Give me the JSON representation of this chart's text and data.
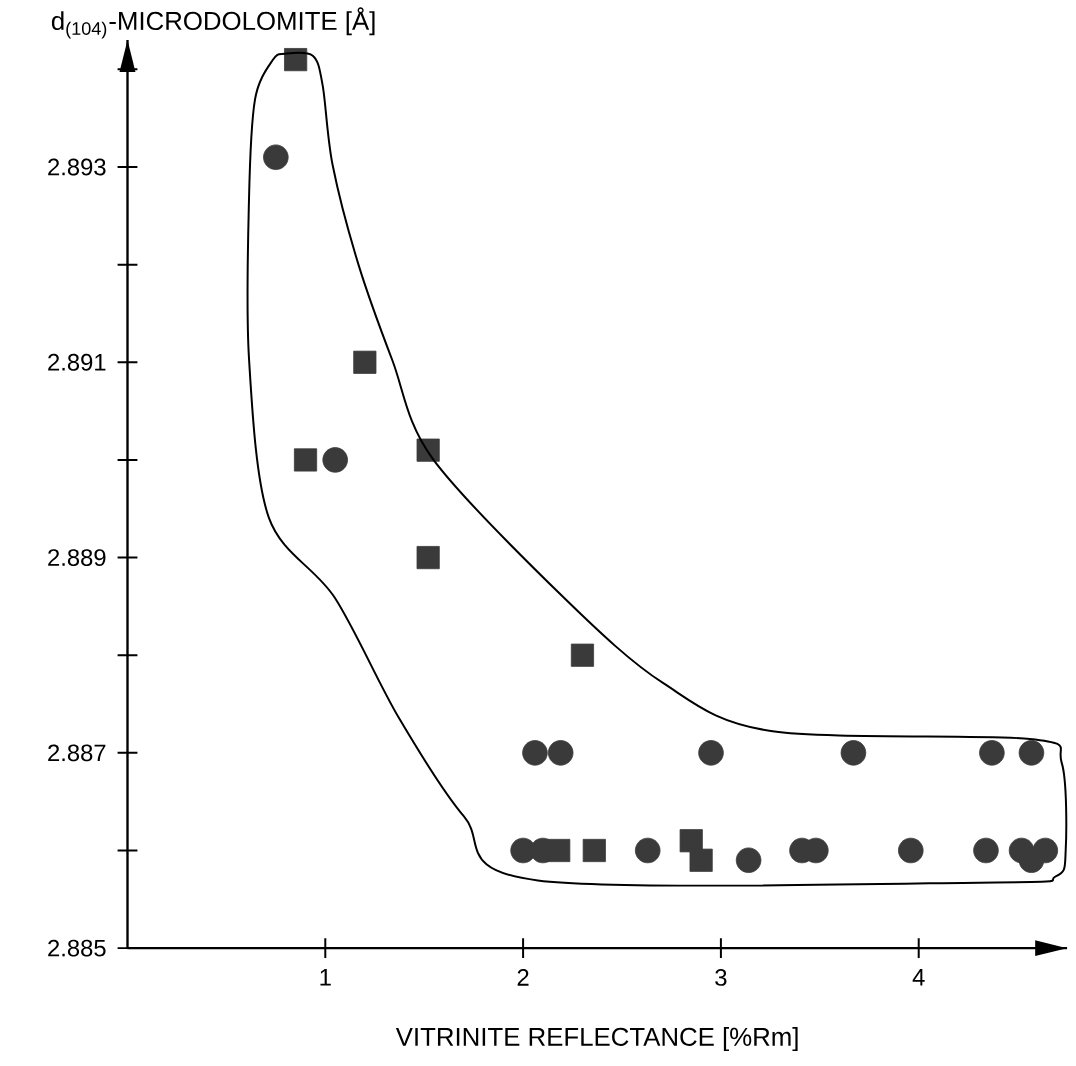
{
  "chart_data": {
    "type": "scatter",
    "xlabel": "VITRINITE REFLECTANCE [%Rm]",
    "ylabel": "d$_{(104)}$-MICRODOLOMITE [Å]",
    "xlim": [
      0,
      4.75
    ],
    "ylim": [
      2.885,
      2.8943
    ],
    "xticks": [
      1,
      2,
      3,
      4
    ],
    "yticks": [
      2.885,
      {
        "value": 2.886,
        "label": null
      },
      2.887,
      {
        "value": 2.888,
        "label": null
      },
      2.889,
      {
        "value": 2.89,
        "label": null
      },
      2.891,
      {
        "value": 2.892,
        "label": null
      },
      2.893,
      {
        "value": 2.894,
        "label": null
      }
    ],
    "grid": false,
    "series": [
      {
        "marker": "circle",
        "color": "#3a3a3a",
        "x": [
          0.75,
          1.05,
          2.0,
          2.1,
          2.63,
          3.14,
          3.41,
          3.48,
          3.96,
          4.34,
          4.52,
          4.57,
          4.64,
          2.06,
          2.19,
          2.95,
          3.67,
          4.37,
          4.57
        ],
        "values": [
          2.8931,
          2.89,
          2.886,
          2.886,
          2.886,
          2.8859,
          2.886,
          2.886,
          2.886,
          2.886,
          2.886,
          2.8859,
          2.886,
          2.887,
          2.887,
          2.887,
          2.887,
          2.887,
          2.887
        ]
      },
      {
        "marker": "square",
        "color": "#3a3a3a",
        "x": [
          0.85,
          1.2,
          0.9,
          1.52,
          1.52,
          2.3,
          2.18,
          2.36,
          2.85,
          2.9
        ],
        "values": [
          2.8941,
          2.891,
          2.89,
          2.8901,
          2.889,
          2.888,
          2.886,
          2.886,
          2.8861,
          2.8859
        ]
      }
    ]
  }
}
